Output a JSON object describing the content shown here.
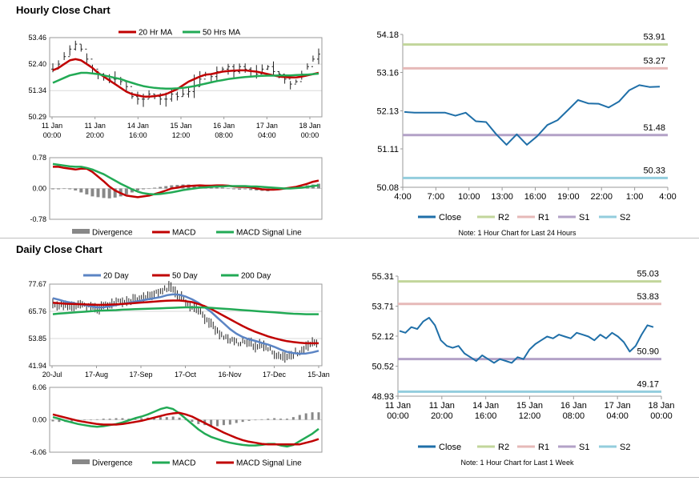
{
  "hourly": {
    "title": "Hourly Close Chart",
    "price": {
      "legend": [
        {
          "label": "20 Hr MA",
          "color": "#c00000"
        },
        {
          "label": "50 Hrs MA",
          "color": "#22aa55"
        }
      ],
      "yticks": [
        "53.46",
        "52.40",
        "51.34",
        "50.29"
      ],
      "xticks": [
        [
          "11 Jan",
          "00:00"
        ],
        [
          "11 Jan",
          "20:00"
        ],
        [
          "14 Jan",
          "16:00"
        ],
        [
          "15 Jan",
          "12:00"
        ],
        [
          "16 Jan",
          "08:00"
        ],
        [
          "17 Jan",
          "04:00"
        ],
        [
          "18 Jan",
          "00:00"
        ]
      ]
    },
    "macd": {
      "yticks": [
        "0.78",
        "0.00",
        "-0.78"
      ],
      "legend": [
        {
          "label": "Divergence",
          "color": "#888888"
        },
        {
          "label": "MACD",
          "color": "#c00000"
        },
        {
          "label": "MACD Signal Line",
          "color": "#22aa55"
        }
      ]
    }
  },
  "daily": {
    "title": "Daily Close Chart",
    "price": {
      "legend": [
        {
          "label": "20 Day",
          "color": "#5b84c4"
        },
        {
          "label": "50 Day",
          "color": "#c00000"
        },
        {
          "label": "200 Day",
          "color": "#22aa55"
        }
      ],
      "yticks": [
        "77.67",
        "65.76",
        "53.85",
        "41.94"
      ],
      "xticks": [
        "20-Jul",
        "17-Aug",
        "17-Sep",
        "17-Oct",
        "16-Nov",
        "17-Dec",
        "15-Jan"
      ]
    },
    "macd": {
      "yticks": [
        "6.06",
        "0.00",
        "-6.06"
      ],
      "legend": [
        {
          "label": "Divergence",
          "color": "#888888"
        },
        {
          "label": "MACD",
          "color": "#22aa55"
        },
        {
          "label": "MACD Signal Line",
          "color": "#c00000"
        }
      ]
    }
  },
  "pivot24h": {
    "xticks": [
      "4:00",
      "7:00",
      "10:00",
      "13:00",
      "16:00",
      "19:00",
      "22:00",
      "1:00",
      "4:00"
    ],
    "legend": [
      {
        "label": "Close",
        "color": "#1f6fa8"
      },
      {
        "label": "R2",
        "color": "#c2d69b"
      },
      {
        "label": "R1",
        "color": "#e6b9b8"
      },
      {
        "label": "S1",
        "color": "#b3a2c7"
      },
      {
        "label": "S2",
        "color": "#93cddd"
      }
    ],
    "note": "Note: 1 Hour Chart for Last 24 Hours"
  },
  "pivot1w": {
    "xticks": [
      [
        "11 Jan",
        "00:00"
      ],
      [
        "11 Jan",
        "20:00"
      ],
      [
        "14 Jan",
        "16:00"
      ],
      [
        "15 Jan",
        "12:00"
      ],
      [
        "16 Jan",
        "08:00"
      ],
      [
        "17 Jan",
        "04:00"
      ],
      [
        "18 Jan",
        "00:00"
      ]
    ],
    "legend": [
      {
        "label": "Close",
        "color": "#1f6fa8"
      },
      {
        "label": "R2",
        "color": "#c2d69b"
      },
      {
        "label": "R1",
        "color": "#e6b9b8"
      },
      {
        "label": "S1",
        "color": "#b3a2c7"
      },
      {
        "label": "S2",
        "color": "#93cddd"
      }
    ],
    "note": "Note: 1 Hour Chart for Last 1 Week"
  },
  "chart_data": [
    {
      "id": "hourly-price",
      "type": "line",
      "ylim": [
        50.29,
        53.46
      ],
      "series": [
        {
          "name": "Price",
          "style": "candles",
          "values": [
            52.2,
            52.4,
            52.7,
            53.0,
            53.2,
            53.0,
            52.6,
            52.2,
            52.0,
            51.9,
            51.8,
            51.8,
            51.7,
            51.5,
            51.1,
            51.0,
            51.0,
            51.2,
            51.1,
            51.0,
            51.0,
            51.2,
            51.1,
            51.2,
            51.3,
            51.5,
            51.8,
            52.0,
            51.9,
            52.1,
            52.2,
            52.3,
            52.1,
            52.3,
            52.2,
            52.1,
            52.0,
            52.2,
            52.3,
            52.1,
            52.0,
            51.8,
            51.6,
            51.7,
            52.0,
            52.3,
            52.6,
            52.8
          ]
        },
        {
          "name": "20 Hr MA",
          "color": "#c00000",
          "values": [
            52.15,
            52.25,
            52.4,
            52.55,
            52.6,
            52.55,
            52.4,
            52.25,
            52.05,
            51.9,
            51.75,
            51.6,
            51.45,
            51.3,
            51.2,
            51.15,
            51.1,
            51.1,
            51.12,
            51.15,
            51.2,
            51.3,
            51.4,
            51.55,
            51.7,
            51.8,
            51.9,
            51.98,
            52.0,
            52.05,
            52.1,
            52.12,
            52.14,
            52.15,
            52.15,
            52.12,
            52.1,
            52.05,
            52.0,
            51.95,
            51.9,
            51.88,
            51.87,
            51.87,
            51.9,
            51.95,
            52.0,
            52.05
          ]
        },
        {
          "name": "50 Hrs MA",
          "color": "#22aa55",
          "values": [
            51.65,
            51.75,
            51.85,
            51.95,
            52.0,
            52.05,
            52.05,
            52.03,
            52.0,
            51.95,
            51.9,
            51.85,
            51.8,
            51.72,
            51.65,
            51.58,
            51.52,
            51.48,
            51.45,
            51.43,
            51.42,
            51.42,
            51.43,
            51.45,
            51.48,
            51.52,
            51.57,
            51.62,
            51.67,
            51.72,
            51.76,
            51.8,
            51.83,
            51.86,
            51.88,
            51.9,
            51.92,
            51.93,
            51.94,
            51.94,
            51.95,
            51.95,
            51.95,
            51.96,
            51.97,
            51.98,
            52.0,
            52.02
          ]
        }
      ]
    },
    {
      "id": "hourly-macd",
      "type": "line",
      "ylim": [
        -0.78,
        0.78
      ],
      "series": [
        {
          "name": "Divergence",
          "style": "bars",
          "color": "#888888",
          "values": [
            -0.02,
            -0.02,
            -0.01,
            -0.02,
            -0.05,
            -0.1,
            -0.15,
            -0.2,
            -0.22,
            -0.24,
            -0.25,
            -0.23,
            -0.2,
            -0.15,
            -0.1,
            -0.05,
            -0.02,
            0.0,
            0.02,
            0.04,
            0.06,
            0.08,
            0.09,
            0.1,
            0.1,
            0.08,
            0.06,
            0.05,
            0.04,
            0.03,
            0.02,
            0.0,
            -0.02,
            -0.03,
            -0.02,
            -0.04,
            -0.05,
            -0.06,
            -0.07,
            -0.05,
            -0.03,
            -0.02,
            0.0,
            0.02,
            0.05,
            0.08,
            0.1,
            0.12
          ]
        },
        {
          "name": "MACD",
          "color": "#c00000",
          "values": [
            0.55,
            0.55,
            0.52,
            0.5,
            0.48,
            0.5,
            0.5,
            0.42,
            0.3,
            0.18,
            0.05,
            -0.05,
            -0.12,
            -0.18,
            -0.2,
            -0.22,
            -0.2,
            -0.18,
            -0.14,
            -0.1,
            -0.05,
            0.0,
            0.02,
            0.05,
            0.06,
            0.07,
            0.08,
            0.07,
            0.07,
            0.08,
            0.08,
            0.07,
            0.05,
            0.04,
            0.04,
            0.03,
            0.0,
            -0.02,
            -0.03,
            -0.03,
            -0.02,
            0.0,
            0.02,
            0.04,
            0.08,
            0.12,
            0.17,
            0.2
          ]
        },
        {
          "name": "MACD Signal Line",
          "color": "#22aa55",
          "values": [
            0.62,
            0.6,
            0.58,
            0.56,
            0.55,
            0.55,
            0.52,
            0.48,
            0.42,
            0.36,
            0.28,
            0.2,
            0.12,
            0.05,
            -0.02,
            -0.08,
            -0.12,
            -0.14,
            -0.15,
            -0.14,
            -0.12,
            -0.1,
            -0.07,
            -0.04,
            -0.02,
            0.0,
            0.02,
            0.03,
            0.04,
            0.05,
            0.05,
            0.06,
            0.06,
            0.06,
            0.06,
            0.05,
            0.05,
            0.04,
            0.03,
            0.02,
            0.01,
            0.0,
            0.0,
            0.01,
            0.02,
            0.04,
            0.06,
            0.08
          ]
        }
      ]
    },
    {
      "id": "daily-price",
      "type": "line",
      "ylim": [
        41.94,
        77.67
      ],
      "series": [
        {
          "name": "Price",
          "style": "candles",
          "values": [
            69,
            68.5,
            68,
            68.5,
            69,
            68,
            67.5,
            66.5,
            68,
            69,
            69.5,
            70,
            70.5,
            71,
            71,
            72,
            73,
            74.5,
            76,
            75.5,
            73,
            70,
            68,
            66,
            63,
            60,
            57,
            55,
            53,
            52,
            52,
            51.5,
            51,
            50.5,
            49.5,
            47.5,
            46,
            45.5,
            47,
            48.5,
            50,
            51.5,
            52
          ]
        },
        {
          "name": "20 Day",
          "color": "#5b84c4",
          "values": [
            71.5,
            70.8,
            70,
            69.5,
            69,
            68.5,
            68,
            67.5,
            67.5,
            68,
            68.5,
            69,
            69.5,
            70,
            70.5,
            71,
            71.5,
            72,
            72.8,
            73.2,
            73,
            72.2,
            71,
            69.5,
            67.5,
            65.5,
            63,
            60.5,
            58,
            56,
            54.5,
            53.5,
            52.8,
            52,
            51.2,
            50.2,
            49,
            48,
            47.5,
            47.2,
            47.3,
            47.8,
            48.5
          ]
        },
        {
          "name": "50 Day",
          "color": "#c00000",
          "values": [
            69.5,
            69.3,
            69.1,
            69,
            68.9,
            68.8,
            68.7,
            68.6,
            68.6,
            68.7,
            68.8,
            69,
            69.2,
            69.4,
            69.6,
            69.8,
            70,
            70.2,
            70.4,
            70.5,
            70.5,
            70.2,
            69.8,
            69,
            68,
            66.8,
            65.3,
            63.8,
            62.3,
            60.8,
            59.3,
            58,
            56.8,
            55.8,
            54.8,
            54,
            53.3,
            52.7,
            52.3,
            52,
            51.8,
            51.8,
            51.8
          ]
        },
        {
          "name": "200 Day",
          "color": "#22aa55",
          "values": [
            64.5,
            64.8,
            65,
            65.2,
            65.4,
            65.6,
            65.8,
            66,
            66.1,
            66.2,
            66.3,
            66.5,
            66.6,
            66.7,
            66.8,
            66.9,
            67,
            67.1,
            67.2,
            67.3,
            67.4,
            67.5,
            67.5,
            67.5,
            67.4,
            67.3,
            67.1,
            66.9,
            66.7,
            66.5,
            66.3,
            66.1,
            65.9,
            65.7,
            65.5,
            65.3,
            65.1,
            64.9,
            64.7,
            64.6,
            64.5,
            64.5,
            64.5
          ]
        }
      ]
    },
    {
      "id": "daily-macd",
      "type": "line",
      "ylim": [
        -6.06,
        6.06
      ],
      "series": [
        {
          "name": "Divergence",
          "style": "bars",
          "color": "#888888",
          "values": [
            -0.3,
            -0.4,
            -0.4,
            -0.3,
            -0.2,
            -0.1,
            0,
            0.1,
            0.2,
            0.2,
            0.3,
            0.3,
            0.2,
            0.2,
            0.3,
            0.4,
            0.5,
            0.5,
            0.5,
            0.6,
            0.4,
            0,
            -0.4,
            -0.8,
            -1,
            -1.2,
            -1.2,
            -1,
            -0.9,
            -0.6,
            -0.4,
            -0.2,
            0,
            0.1,
            0.2,
            0.3,
            0.2,
            0.2,
            0.5,
            0.9,
            1.2,
            1.4,
            1.4
          ]
        },
        {
          "name": "MACD",
          "color": "#22aa55",
          "values": [
            0.5,
            0.2,
            -0.2,
            -0.5,
            -0.8,
            -1.0,
            -1.2,
            -1.3,
            -1.2,
            -1.0,
            -0.8,
            -0.5,
            -0.1,
            0.3,
            0.6,
            1.0,
            1.5,
            2.0,
            2.3,
            2.0,
            1.2,
            0.2,
            -0.8,
            -1.8,
            -2.6,
            -3.2,
            -3.6,
            -4.0,
            -4.3,
            -4.5,
            -4.7,
            -4.8,
            -4.8,
            -4.7,
            -4.5,
            -4.5,
            -4.8,
            -5.0,
            -4.7,
            -4.0,
            -3.3,
            -2.6,
            -1.7
          ]
        },
        {
          "name": "MACD Signal Line",
          "color": "#c00000",
          "values": [
            1,
            0.7,
            0.4,
            0.1,
            -0.2,
            -0.4,
            -0.6,
            -0.8,
            -0.9,
            -0.9,
            -0.9,
            -0.8,
            -0.6,
            -0.4,
            -0.2,
            0.1,
            0.4,
            0.7,
            1.0,
            1.2,
            1.3,
            1.0,
            0.6,
            0.0,
            -0.6,
            -1.2,
            -1.8,
            -2.4,
            -2.9,
            -3.4,
            -3.8,
            -4.1,
            -4.3,
            -4.5,
            -4.6,
            -4.6,
            -4.6,
            -4.6,
            -4.6,
            -4.6,
            -4.3,
            -4.0,
            -3.6
          ]
        }
      ]
    },
    {
      "id": "pivot-24h",
      "type": "line",
      "ylim": [
        50.08,
        54.18
      ],
      "yticks": [
        "54.18",
        "53.16",
        "52.13",
        "51.11",
        "50.08"
      ],
      "series": [
        {
          "name": "Close",
          "color": "#1f6fa8",
          "values": [
            52.1,
            52.08,
            52.08,
            52.08,
            52.08,
            52.0,
            52.08,
            51.85,
            51.83,
            51.5,
            51.22,
            51.5,
            51.22,
            51.45,
            51.75,
            51.88,
            52.15,
            52.42,
            52.33,
            52.32,
            52.22,
            52.38,
            52.68,
            52.82,
            52.77,
            52.78
          ]
        },
        {
          "name": "R2",
          "color": "#c2d69b",
          "level": 53.91
        },
        {
          "name": "R1",
          "color": "#e6b9b8",
          "level": 53.27
        },
        {
          "name": "S1",
          "color": "#b3a2c7",
          "level": 51.48
        },
        {
          "name": "S2",
          "color": "#93cddd",
          "level": 50.33
        }
      ],
      "level_labels": {
        "R2": "53.91",
        "R1": "53.27",
        "S1": "51.48",
        "S2": "50.33"
      }
    },
    {
      "id": "pivot-1w",
      "type": "line",
      "ylim": [
        48.93,
        55.31
      ],
      "yticks": [
        "55.31",
        "53.71",
        "52.12",
        "50.52",
        "48.93"
      ],
      "series": [
        {
          "name": "Close",
          "color": "#1f6fa8",
          "values": [
            52.4,
            52.3,
            52.6,
            52.5,
            52.9,
            53.1,
            52.7,
            51.9,
            51.6,
            51.5,
            51.6,
            51.2,
            51.0,
            50.8,
            51.1,
            50.9,
            50.7,
            50.9,
            50.8,
            50.7,
            51.0,
            50.9,
            51.4,
            51.7,
            51.9,
            52.1,
            52.0,
            52.2,
            52.1,
            52.0,
            52.3,
            52.2,
            52.1,
            51.9,
            52.2,
            52.0,
            52.3,
            52.1,
            51.8,
            51.3,
            51.6,
            52.2,
            52.7,
            52.6
          ]
        },
        {
          "name": "R2",
          "color": "#c2d69b",
          "level": 55.03
        },
        {
          "name": "R1",
          "color": "#e6b9b8",
          "level": 53.83
        },
        {
          "name": "S1",
          "color": "#b3a2c7",
          "level": 50.9
        },
        {
          "name": "S2",
          "color": "#93cddd",
          "level": 49.17
        }
      ],
      "level_labels": {
        "R2": "55.03",
        "R1": "53.83",
        "S1": "50.90",
        "S2": "49.17"
      }
    }
  ]
}
